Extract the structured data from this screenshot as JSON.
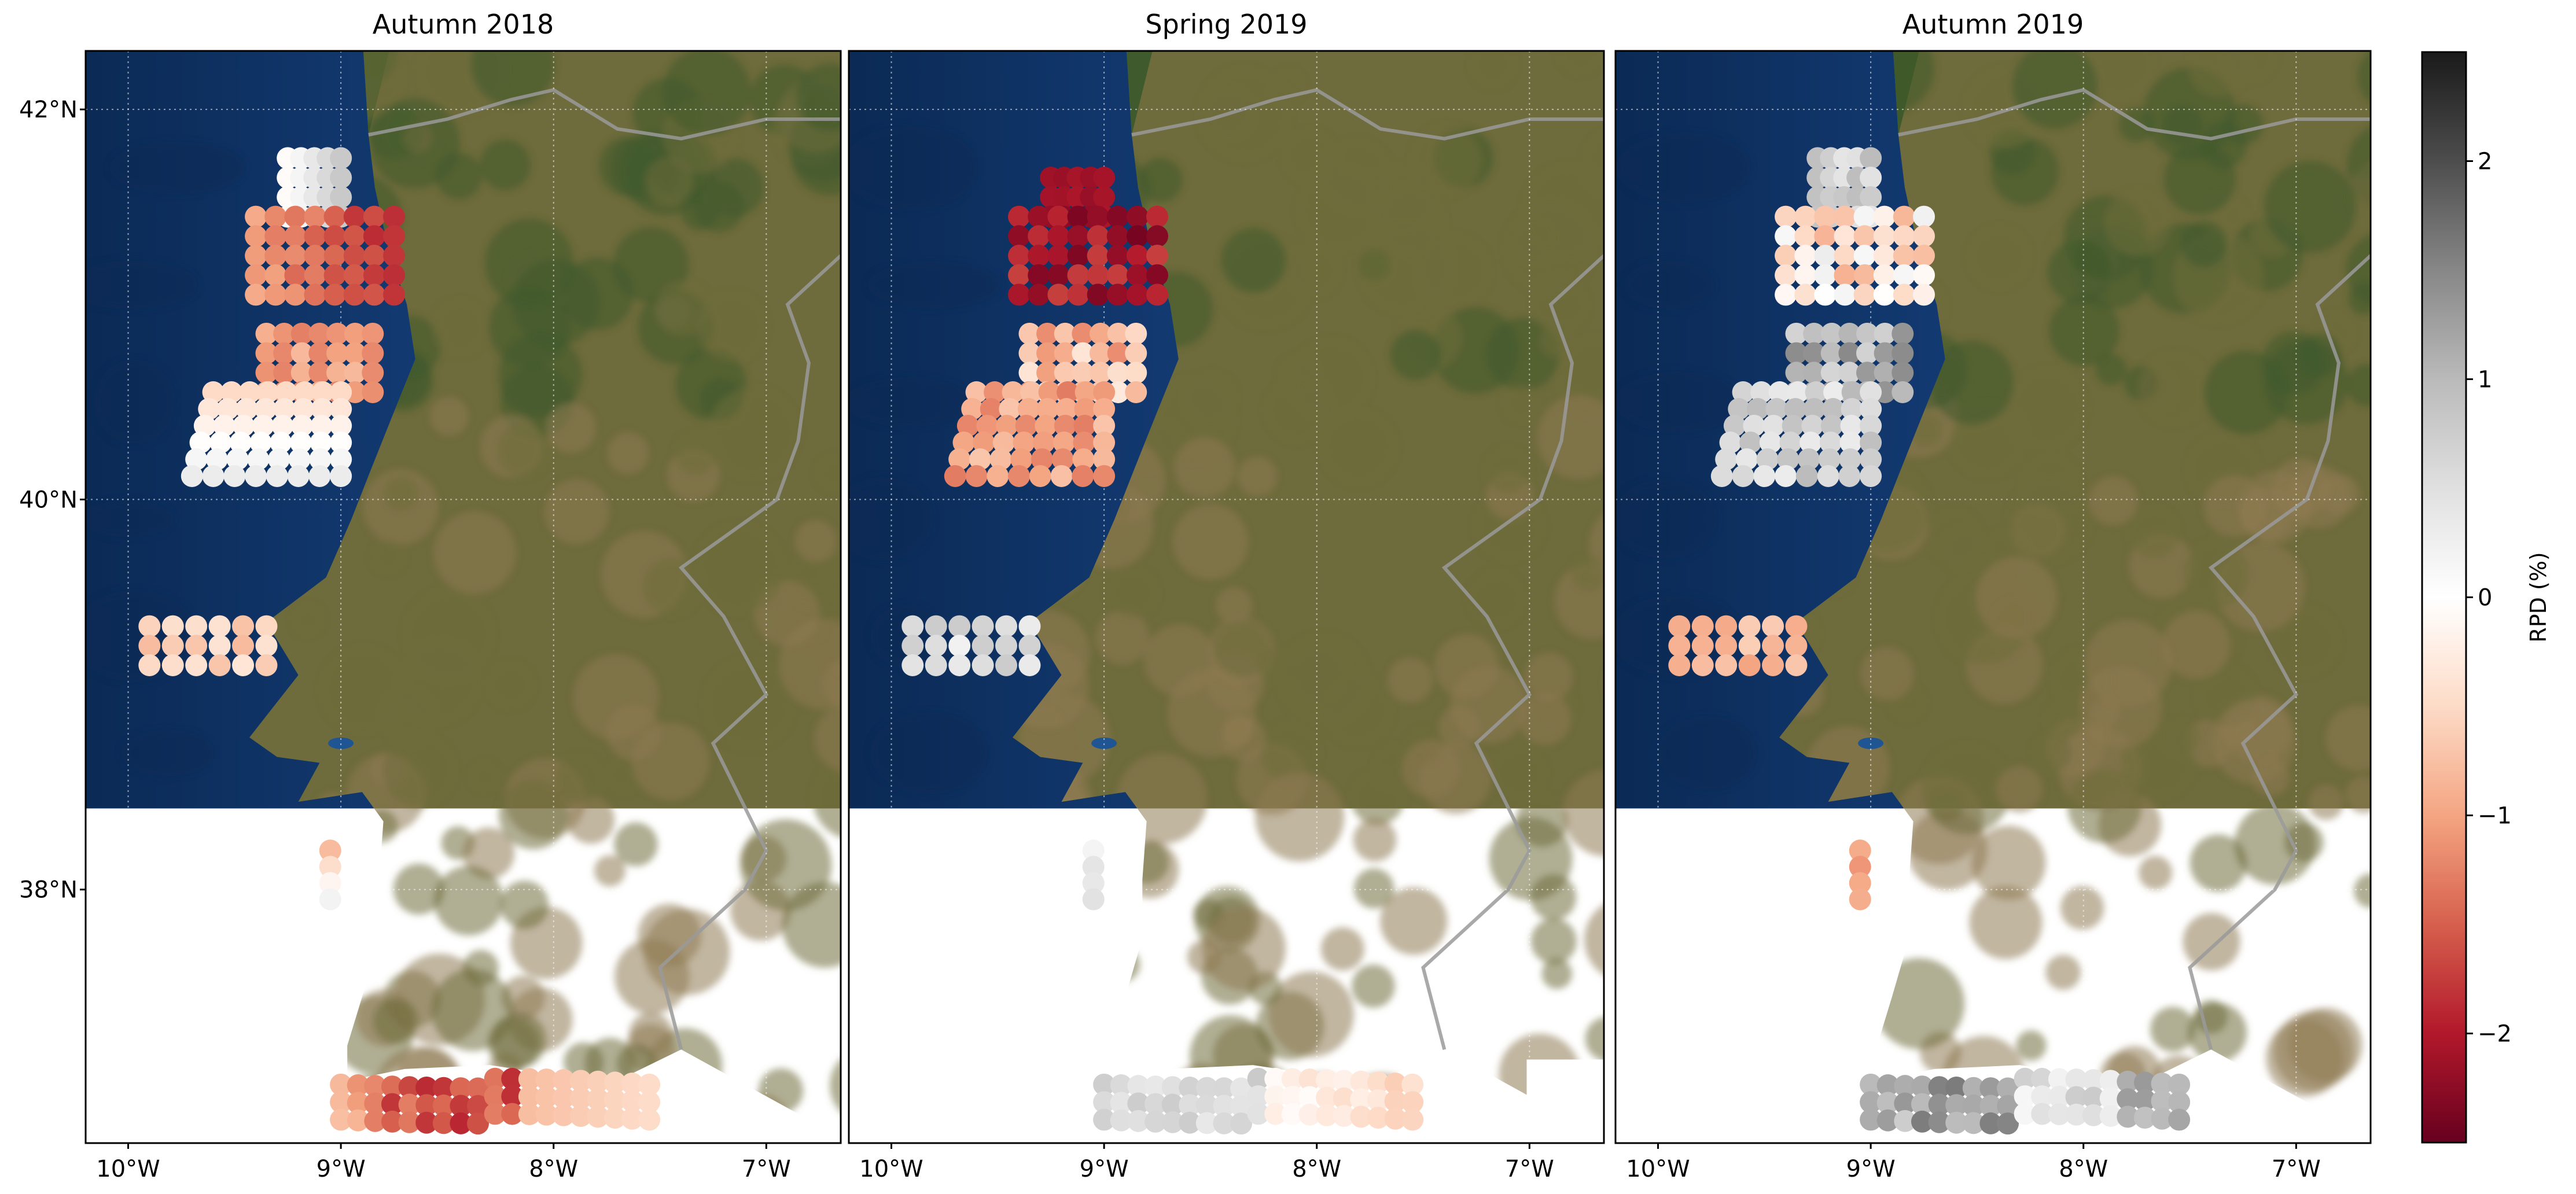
{
  "figure": {
    "colormap": {
      "name": "RdGy",
      "stops": [
        "#67001f",
        "#b2182b",
        "#d6604d",
        "#f4a582",
        "#fddbc7",
        "#ffffff",
        "#e0e0e0",
        "#bababa",
        "#878787",
        "#4d4d4d",
        "#1a1a1a"
      ],
      "min": -2.5,
      "max": 2.5
    },
    "colorbar": {
      "label": "RPD (%)",
      "ticks": [
        {
          "value": 2,
          "label": "2"
        },
        {
          "value": 1,
          "label": "1"
        },
        {
          "value": 0,
          "label": "0"
        },
        {
          "value": -1,
          "label": "−1"
        },
        {
          "value": -2,
          "label": "−2"
        }
      ]
    },
    "map_extent": {
      "lon": [
        -10.2,
        -6.65
      ],
      "lat": [
        36.7,
        42.3
      ]
    },
    "lon_ticks": [
      {
        "value": -10,
        "label": "10°W"
      },
      {
        "value": -9,
        "label": "9°W"
      },
      {
        "value": -8,
        "label": "8°W"
      },
      {
        "value": -7,
        "label": "7°W"
      }
    ],
    "lat_ticks": [
      {
        "value": 42,
        "label": "42°N"
      },
      {
        "value": 40,
        "label": "40°N"
      },
      {
        "value": 38,
        "label": "38°N"
      }
    ],
    "grid": true,
    "colors": {
      "ocean_deep": "#0b2a55",
      "ocean": "#143e79",
      "ocean_shelf": "#1e5592",
      "land": "#6e6b3c",
      "land_green": "#3f5a2c",
      "land_dry": "#8e7a52",
      "border": "#9a9a9a"
    }
  },
  "panels": [
    {
      "title": "Autumn 2018",
      "regions": [
        {
          "name": "north_upper",
          "lon": [
            -9.25,
            -9.0
          ],
          "lat": [
            41.45,
            41.75
          ],
          "vmin": -0.05,
          "vmax": 0.8,
          "rows": 4,
          "cols": 5,
          "pattern": "rise_east"
        },
        {
          "name": "north_main",
          "lon": [
            -9.4,
            -8.75
          ],
          "lat": [
            41.05,
            41.45
          ],
          "vmin": -2.0,
          "vmax": -0.9,
          "rows": 5,
          "cols": 8,
          "pattern": "darker_east"
        },
        {
          "name": "central_upper",
          "lon": [
            -9.35,
            -8.85
          ],
          "lat": [
            40.55,
            40.85
          ],
          "vmin": -1.3,
          "vmax": -0.8,
          "rows": 4,
          "cols": 7,
          "pattern": "random"
        },
        {
          "name": "central_lower",
          "lon": [
            -9.6,
            -9.0
          ],
          "lat": [
            40.12,
            40.55
          ],
          "vmin": -0.5,
          "vmax": 0.3,
          "rows": 6,
          "cols": 8,
          "pattern": "whiter_south"
        },
        {
          "name": "lisbon_offshore",
          "lon": [
            -9.9,
            -9.35
          ],
          "lat": [
            39.15,
            39.35
          ],
          "vmin": -0.8,
          "vmax": -0.3,
          "rows": 3,
          "cols": 6,
          "pattern": "random"
        },
        {
          "name": "sines",
          "lon": [
            -9.05,
            -9.05
          ],
          "lat": [
            37.95,
            38.2
          ],
          "vmin": -0.8,
          "vmax": 0.2,
          "rows": 4,
          "cols": 1,
          "pattern": "whiter_south"
        },
        {
          "name": "algarve",
          "lon": [
            -9.0,
            -7.55
          ],
          "lat": [
            36.82,
            37.0
          ],
          "vmin": -1.9,
          "vmax": -0.4,
          "rows": 3,
          "cols": 19,
          "pattern": "algarve_a18"
        }
      ]
    },
    {
      "title": "Spring 2019",
      "regions": [
        {
          "name": "north_upper",
          "lon": [
            -9.25,
            -9.0
          ],
          "lat": [
            41.45,
            41.65
          ],
          "vmin": -2.3,
          "vmax": -2.0,
          "rows": 3,
          "cols": 5,
          "pattern": "random"
        },
        {
          "name": "north_main",
          "lon": [
            -9.4,
            -8.75
          ],
          "lat": [
            41.05,
            41.45
          ],
          "vmin": -2.4,
          "vmax": -1.7,
          "rows": 5,
          "cols": 8,
          "pattern": "random"
        },
        {
          "name": "central_upper",
          "lon": [
            -9.35,
            -8.85
          ],
          "lat": [
            40.55,
            40.85
          ],
          "vmin": -1.2,
          "vmax": -0.3,
          "rows": 4,
          "cols": 7,
          "pattern": "random"
        },
        {
          "name": "central_lower",
          "lon": [
            -9.6,
            -9.0
          ],
          "lat": [
            40.12,
            40.55
          ],
          "vmin": -1.3,
          "vmax": -0.7,
          "rows": 6,
          "cols": 8,
          "pattern": "random"
        },
        {
          "name": "lisbon_offshore",
          "lon": [
            -9.9,
            -9.35
          ],
          "lat": [
            39.15,
            39.35
          ],
          "vmin": 0.2,
          "vmax": 0.8,
          "rows": 3,
          "cols": 6,
          "pattern": "random"
        },
        {
          "name": "sines",
          "lon": [
            -9.05,
            -9.05
          ],
          "lat": [
            37.95,
            38.2
          ],
          "vmin": 0.0,
          "vmax": 0.5,
          "rows": 4,
          "cols": 1,
          "pattern": "random"
        },
        {
          "name": "algarve",
          "lon": [
            -9.0,
            -7.55
          ],
          "lat": [
            36.82,
            37.0
          ],
          "vmin": -0.9,
          "vmax": 0.8,
          "rows": 3,
          "cols": 19,
          "pattern": "algarve_s19"
        }
      ]
    },
    {
      "title": "Autumn 2019",
      "regions": [
        {
          "name": "north_upper",
          "lon": [
            -9.25,
            -9.0
          ],
          "lat": [
            41.45,
            41.75
          ],
          "vmin": 0.4,
          "vmax": 1.0,
          "rows": 4,
          "cols": 5,
          "pattern": "random"
        },
        {
          "name": "north_main",
          "lon": [
            -9.4,
            -8.75
          ],
          "lat": [
            41.05,
            41.45
          ],
          "vmin": -0.9,
          "vmax": 0.3,
          "rows": 5,
          "cols": 8,
          "pattern": "random"
        },
        {
          "name": "central_upper",
          "lon": [
            -9.35,
            -8.85
          ],
          "lat": [
            40.55,
            40.85
          ],
          "vmin": 0.6,
          "vmax": 1.5,
          "rows": 4,
          "cols": 7,
          "pattern": "random"
        },
        {
          "name": "central_lower",
          "lon": [
            -9.6,
            -9.0
          ],
          "lat": [
            40.12,
            40.55
          ],
          "vmin": 0.3,
          "vmax": 1.0,
          "rows": 6,
          "cols": 8,
          "pattern": "random"
        },
        {
          "name": "lisbon_offshore",
          "lon": [
            -9.9,
            -9.35
          ],
          "lat": [
            39.15,
            39.35
          ],
          "vmin": -1.0,
          "vmax": -0.6,
          "rows": 3,
          "cols": 6,
          "pattern": "random"
        },
        {
          "name": "sines",
          "lon": [
            -9.05,
            -9.05
          ],
          "lat": [
            37.95,
            38.2
          ],
          "vmin": -1.4,
          "vmax": -0.8,
          "rows": 4,
          "cols": 1,
          "pattern": "random"
        },
        {
          "name": "algarve",
          "lon": [
            -9.0,
            -7.55
          ],
          "lat": [
            36.82,
            37.0
          ],
          "vmin": -0.3,
          "vmax": 1.6,
          "rows": 3,
          "cols": 19,
          "pattern": "algarve_a19"
        }
      ]
    }
  ]
}
